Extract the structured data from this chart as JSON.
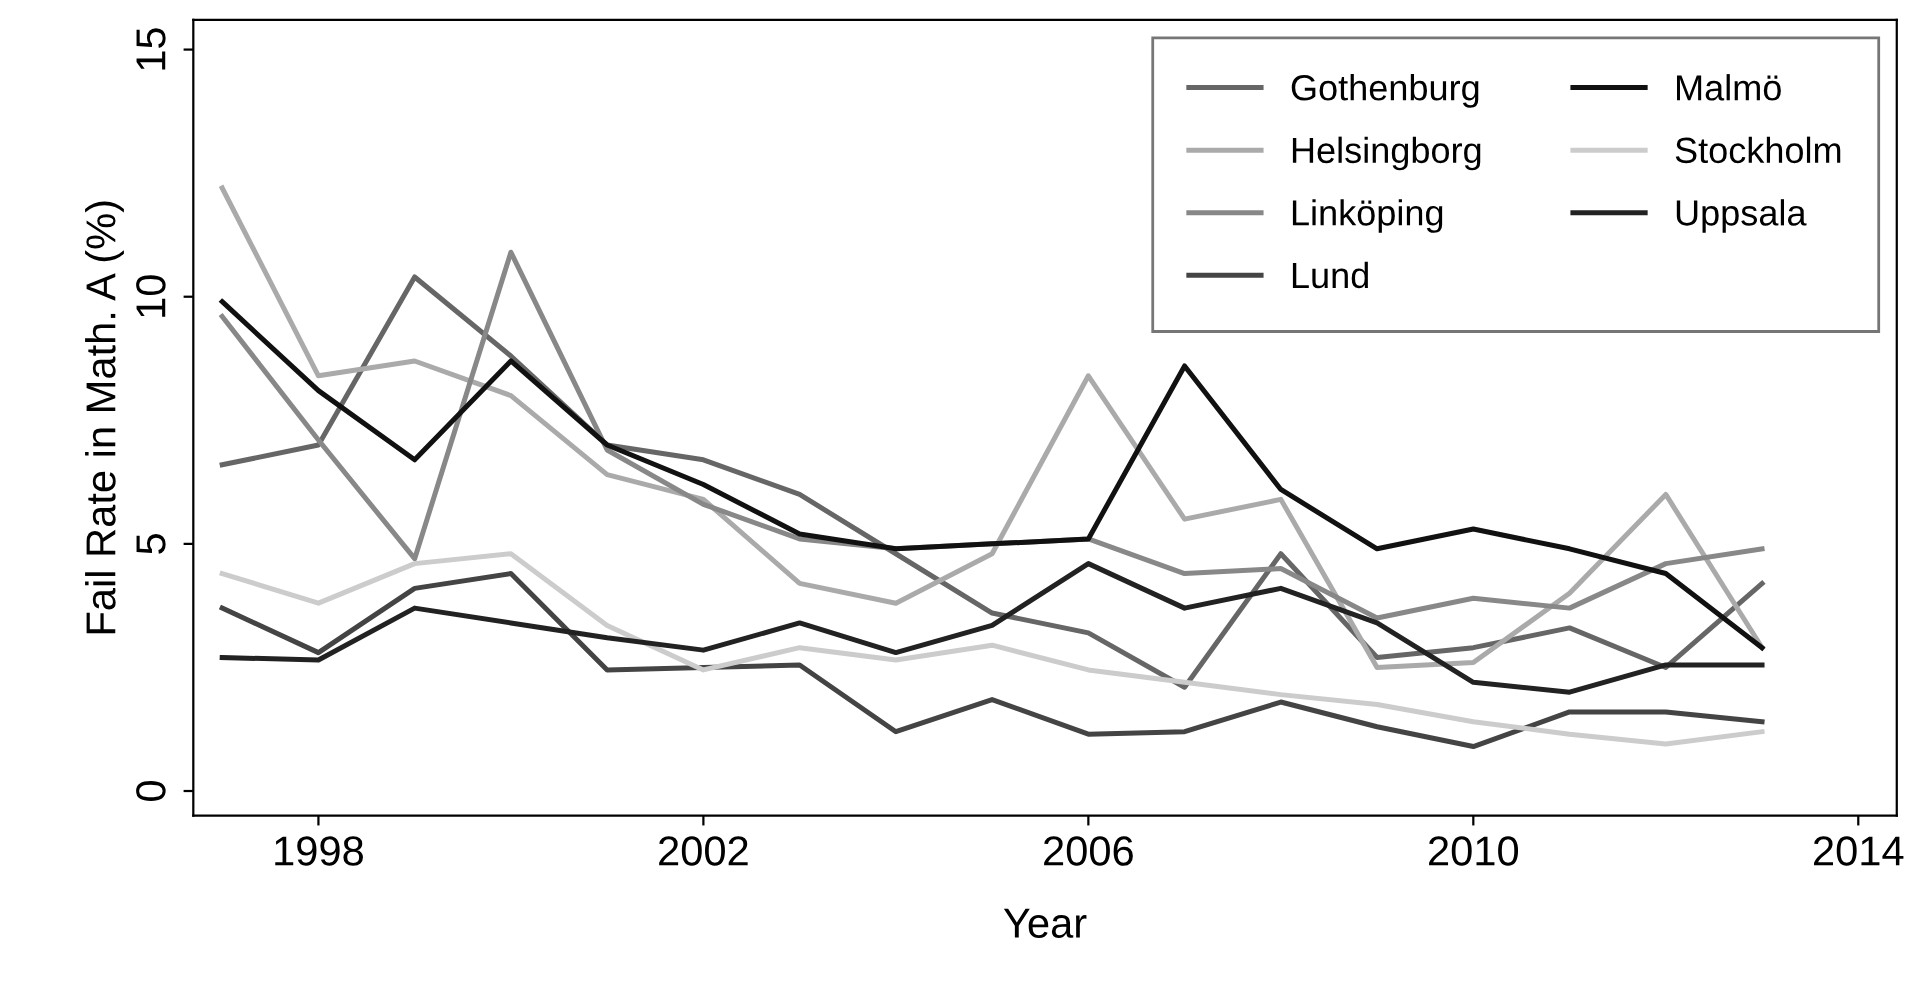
{
  "chart_data": {
    "type": "line",
    "xlabel": "Year",
    "ylabel": "Fail Rate in Math. A (%)",
    "x": [
      1997,
      1998,
      1999,
      2000,
      2001,
      2002,
      2003,
      2004,
      2005,
      2006,
      2007,
      2008,
      2009,
      2010,
      2011,
      2012,
      2013
    ],
    "xlim": [
      1996.7,
      2014.4
    ],
    "xticks": [
      1998,
      2002,
      2006,
      2010,
      2014
    ],
    "ylim": [
      -0.5,
      15.6
    ],
    "yticks": [
      0,
      5,
      10,
      15
    ],
    "grid": false,
    "legend": "top right",
    "marker": "none",
    "line_style": "solid",
    "series": [
      {
        "name": "Gothenburg",
        "color": "#666666",
        "values": [
          6.6,
          7.0,
          10.4,
          8.8,
          7.0,
          6.7,
          6.0,
          4.8,
          3.6,
          3.2,
          2.1,
          4.8,
          2.7,
          2.9,
          3.3,
          2.5,
          4.2
        ]
      },
      {
        "name": "Helsingborg",
        "color": "#aaaaaa",
        "values": [
          12.2,
          8.4,
          8.7,
          8.0,
          6.4,
          5.9,
          4.2,
          3.8,
          4.8,
          8.4,
          5.5,
          5.9,
          2.5,
          2.6,
          4.0,
          6.0,
          2.9
        ]
      },
      {
        "name": "Linköping",
        "color": "#888888",
        "values": [
          9.6,
          7.1,
          4.7,
          10.9,
          6.9,
          5.8,
          5.1,
          4.9,
          5.0,
          5.1,
          4.4,
          4.5,
          3.5,
          3.9,
          3.7,
          4.6,
          4.9
        ]
      },
      {
        "name": "Lund",
        "color": "#444444",
        "values": [
          3.7,
          2.8,
          4.1,
          4.4,
          2.45,
          2.5,
          2.55,
          1.2,
          1.85,
          1.15,
          1.2,
          1.8,
          1.3,
          0.9,
          1.6,
          1.6,
          1.4
        ]
      },
      {
        "name": "Malmö",
        "color": "#111111",
        "values": [
          9.9,
          8.1,
          6.7,
          8.7,
          7.0,
          6.2,
          5.2,
          4.9,
          5.0,
          5.1,
          8.6,
          6.1,
          4.9,
          5.3,
          4.9,
          4.4,
          2.9
        ]
      },
      {
        "name": "Stockholm",
        "color": "#cccccc",
        "values": [
          4.4,
          3.8,
          4.6,
          4.8,
          3.35,
          2.45,
          2.9,
          2.65,
          2.95,
          2.45,
          2.2,
          1.95,
          1.75,
          1.4,
          1.15,
          0.95,
          1.2
        ]
      },
      {
        "name": "Uppsala",
        "color": "#222222",
        "values": [
          2.7,
          2.65,
          3.7,
          3.4,
          3.1,
          2.85,
          3.4,
          2.8,
          3.35,
          4.6,
          3.7,
          4.1,
          3.4,
          2.2,
          2.0,
          2.55,
          2.55
        ]
      }
    ]
  }
}
